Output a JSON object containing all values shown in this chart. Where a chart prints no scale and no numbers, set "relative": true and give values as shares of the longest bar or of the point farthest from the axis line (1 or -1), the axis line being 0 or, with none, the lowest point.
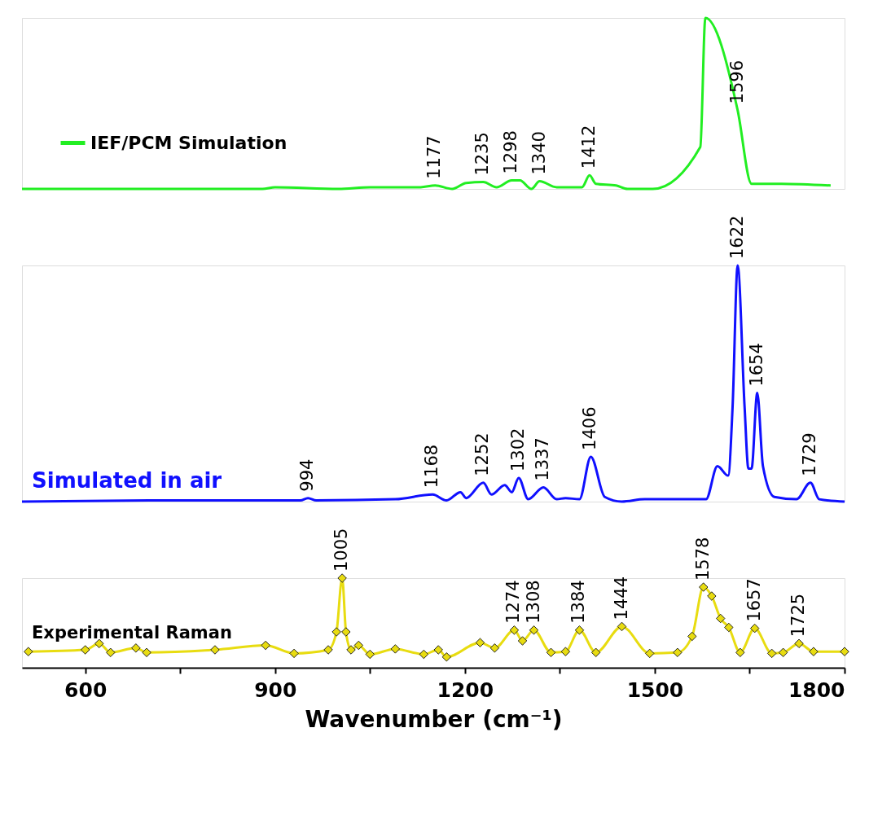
{
  "chart_data": [
    {
      "type": "line",
      "relative": true,
      "xlim": [
        500,
        1800
      ],
      "tick_labels": false,
      "grid": false,
      "legend": "bottom left",
      "marker": "none",
      "line_style": "solid",
      "series": [
        {
          "name": "IEF/PCM Simulation",
          "color": "#22ee22",
          "x": [
            500,
            880,
            900,
            1000,
            1050,
            1130,
            1153,
            1180,
            1202,
            1229,
            1250,
            1274,
            1287,
            1305,
            1318,
            1345,
            1385,
            1397,
            1407,
            1439,
            1457,
            1497,
            1572,
            1580,
            1631,
            1653,
            1700,
            1778
          ],
          "values": [
            0,
            0,
            0.01,
            0,
            0.01,
            0.01,
            0.02,
            0,
            0.035,
            0.04,
            0.01,
            0.05,
            0.05,
            0,
            0.045,
            0.01,
            0.01,
            0.08,
            0.03,
            0.02,
            0,
            0,
            0.245,
            1.0,
            0.46,
            0.03,
            0.03,
            0.02
          ]
        }
      ],
      "annotations": [
        {
          "text": "1177",
          "x": 1153,
          "y": 0.02
        },
        {
          "text": "1235",
          "x": 1229,
          "y": 0.04
        },
        {
          "text": "1298",
          "x": 1274,
          "y": 0.05
        },
        {
          "text": "1340",
          "x": 1318,
          "y": 0.045
        },
        {
          "text": "1412",
          "x": 1397,
          "y": 0.08
        },
        {
          "text": "1596",
          "x": 1631,
          "y": 0.46
        }
      ]
    },
    {
      "type": "line",
      "relative": true,
      "xlim": [
        500,
        1800
      ],
      "tick_labels": false,
      "grid": false,
      "legend": false,
      "marker": "none",
      "line_style": "solid",
      "series": [
        {
          "name": "Simulated in air",
          "color": "#1010ff",
          "x": [
            500,
            700,
            900,
            940,
            952,
            965,
            1090,
            1149,
            1171,
            1193,
            1202,
            1229,
            1242,
            1263,
            1274,
            1285,
            1300,
            1324,
            1345,
            1359,
            1381,
            1399,
            1421,
            1448,
            1484,
            1581,
            1599,
            1616,
            1623,
            1631,
            1642,
            1648,
            1653,
            1662,
            1671,
            1689,
            1724,
            1746,
            1760,
            1800
          ],
          "values": [
            0,
            0.005,
            0.005,
            0.005,
            0.015,
            0.005,
            0.01,
            0.03,
            0.005,
            0.04,
            0.015,
            0.08,
            0.03,
            0.07,
            0.04,
            0.1,
            0.01,
            0.06,
            0.01,
            0.015,
            0.01,
            0.19,
            0.02,
            0,
            0.01,
            0.01,
            0.15,
            0.11,
            0.4,
            1.0,
            0.4,
            0.14,
            0.14,
            0.46,
            0.15,
            0.02,
            0.01,
            0.08,
            0.01,
            0
          ]
        }
      ],
      "annotations": [
        {
          "text": "994",
          "x": 952,
          "y": 0.015
        },
        {
          "text": "1168",
          "x": 1149,
          "y": 0.03
        },
        {
          "text": "1252",
          "x": 1229,
          "y": 0.08
        },
        {
          "text": "1302",
          "x": 1285,
          "y": 0.1
        },
        {
          "text": "1337",
          "x": 1324,
          "y": 0.06
        },
        {
          "text": "1406",
          "x": 1399,
          "y": 0.19
        },
        {
          "text": "1622",
          "x": 1631,
          "y": 1.0
        },
        {
          "text": "1654",
          "x": 1662,
          "y": 0.46
        },
        {
          "text": "1729",
          "x": 1746,
          "y": 0.08
        }
      ]
    },
    {
      "type": "line",
      "relative": true,
      "xlim": [
        500,
        1800
      ],
      "tick_labels": "x",
      "grid": false,
      "legend": false,
      "marker": "diamond",
      "line_style": "solid",
      "xlabel": "Wavenumber (cm⁻¹)",
      "xticks": [
        600,
        {
          "value": 750,
          "label": null
        },
        900,
        {
          "value": 1050,
          "label": null
        },
        1200,
        {
          "value": 1350,
          "label": null
        },
        1500,
        {
          "value": 1650,
          "label": null
        },
        1800
      ],
      "series": [
        {
          "name": "Experimental Raman",
          "color": "#e8dc10",
          "x": [
            510,
            600,
            622,
            640,
            680,
            697,
            805,
            885,
            930,
            984,
            997,
            1006,
            1012,
            1020,
            1032,
            1050,
            1090,
            1135,
            1158,
            1171,
            1224,
            1247,
            1278,
            1291,
            1309,
            1336,
            1359,
            1381,
            1407,
            1448,
            1492,
            1536,
            1559,
            1577,
            1590,
            1604,
            1617,
            1635,
            1658,
            1685,
            1703,
            1728,
            1751,
            1800
          ],
          "values": [
            0.18,
            0.2,
            0.27,
            0.17,
            0.22,
            0.17,
            0.2,
            0.25,
            0.16,
            0.2,
            0.4,
            1.0,
            0.4,
            0.2,
            0.25,
            0.15,
            0.21,
            0.15,
            0.2,
            0.12,
            0.28,
            0.22,
            0.42,
            0.3,
            0.42,
            0.17,
            0.18,
            0.42,
            0.17,
            0.46,
            0.16,
            0.17,
            0.35,
            0.9,
            0.8,
            0.55,
            0.45,
            0.17,
            0.44,
            0.16,
            0.17,
            0.27,
            0.18,
            0.18
          ]
        }
      ],
      "annotations": [
        {
          "text": "1005",
          "x": 1006,
          "y": 1.0
        },
        {
          "text": "1274",
          "x": 1278,
          "y": 0.42
        },
        {
          "text": "1308",
          "x": 1309,
          "y": 0.42
        },
        {
          "text": "1384",
          "x": 1381,
          "y": 0.42
        },
        {
          "text": "1444",
          "x": 1448,
          "y": 0.46
        },
        {
          "text": "1578",
          "x": 1577,
          "y": 0.9
        },
        {
          "text": "1657",
          "x": 1658,
          "y": 0.44
        },
        {
          "text": "1725",
          "x": 1728,
          "y": 0.27
        }
      ]
    }
  ]
}
